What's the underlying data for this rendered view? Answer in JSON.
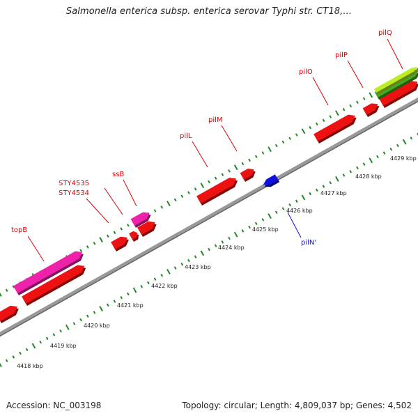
{
  "title": "Salmonella enterica subsp. enterica serovar Typhi str. CT18,...",
  "footer": {
    "accession": "Accession: NC_003198",
    "summary": "Topology: circular; Length: 4,809,037 bp; Genes: 4,502"
  },
  "scale": {
    "ticks": [
      "4418 kbp",
      "4419 kbp",
      "4420 kbp",
      "4421 kbp",
      "4422 kbp",
      "4423 kbp",
      "4424 kbp",
      "4425 kbp",
      "4426 kbp",
      "4427 kbp",
      "4428 kbp",
      "4429 kbp"
    ]
  },
  "colors": {
    "gene": "#ee1111",
    "gene_pink": "#ee22aa",
    "gene_blue": "#1111dd",
    "gene_green": "#44aa22",
    "gene_lime": "#bbee22",
    "ruler": "#228822",
    "backbone": "#888888"
  },
  "labels": {
    "topB": "topB",
    "STY4534": "STY4534",
    "STY4535": "STY4535",
    "ssB": "ssB",
    "pilL": "pilL",
    "pilM": "pilM",
    "pilO": "pilO",
    "pilP": "pilP",
    "pilQ": "pilQ",
    "pilN": "pilN'"
  }
}
